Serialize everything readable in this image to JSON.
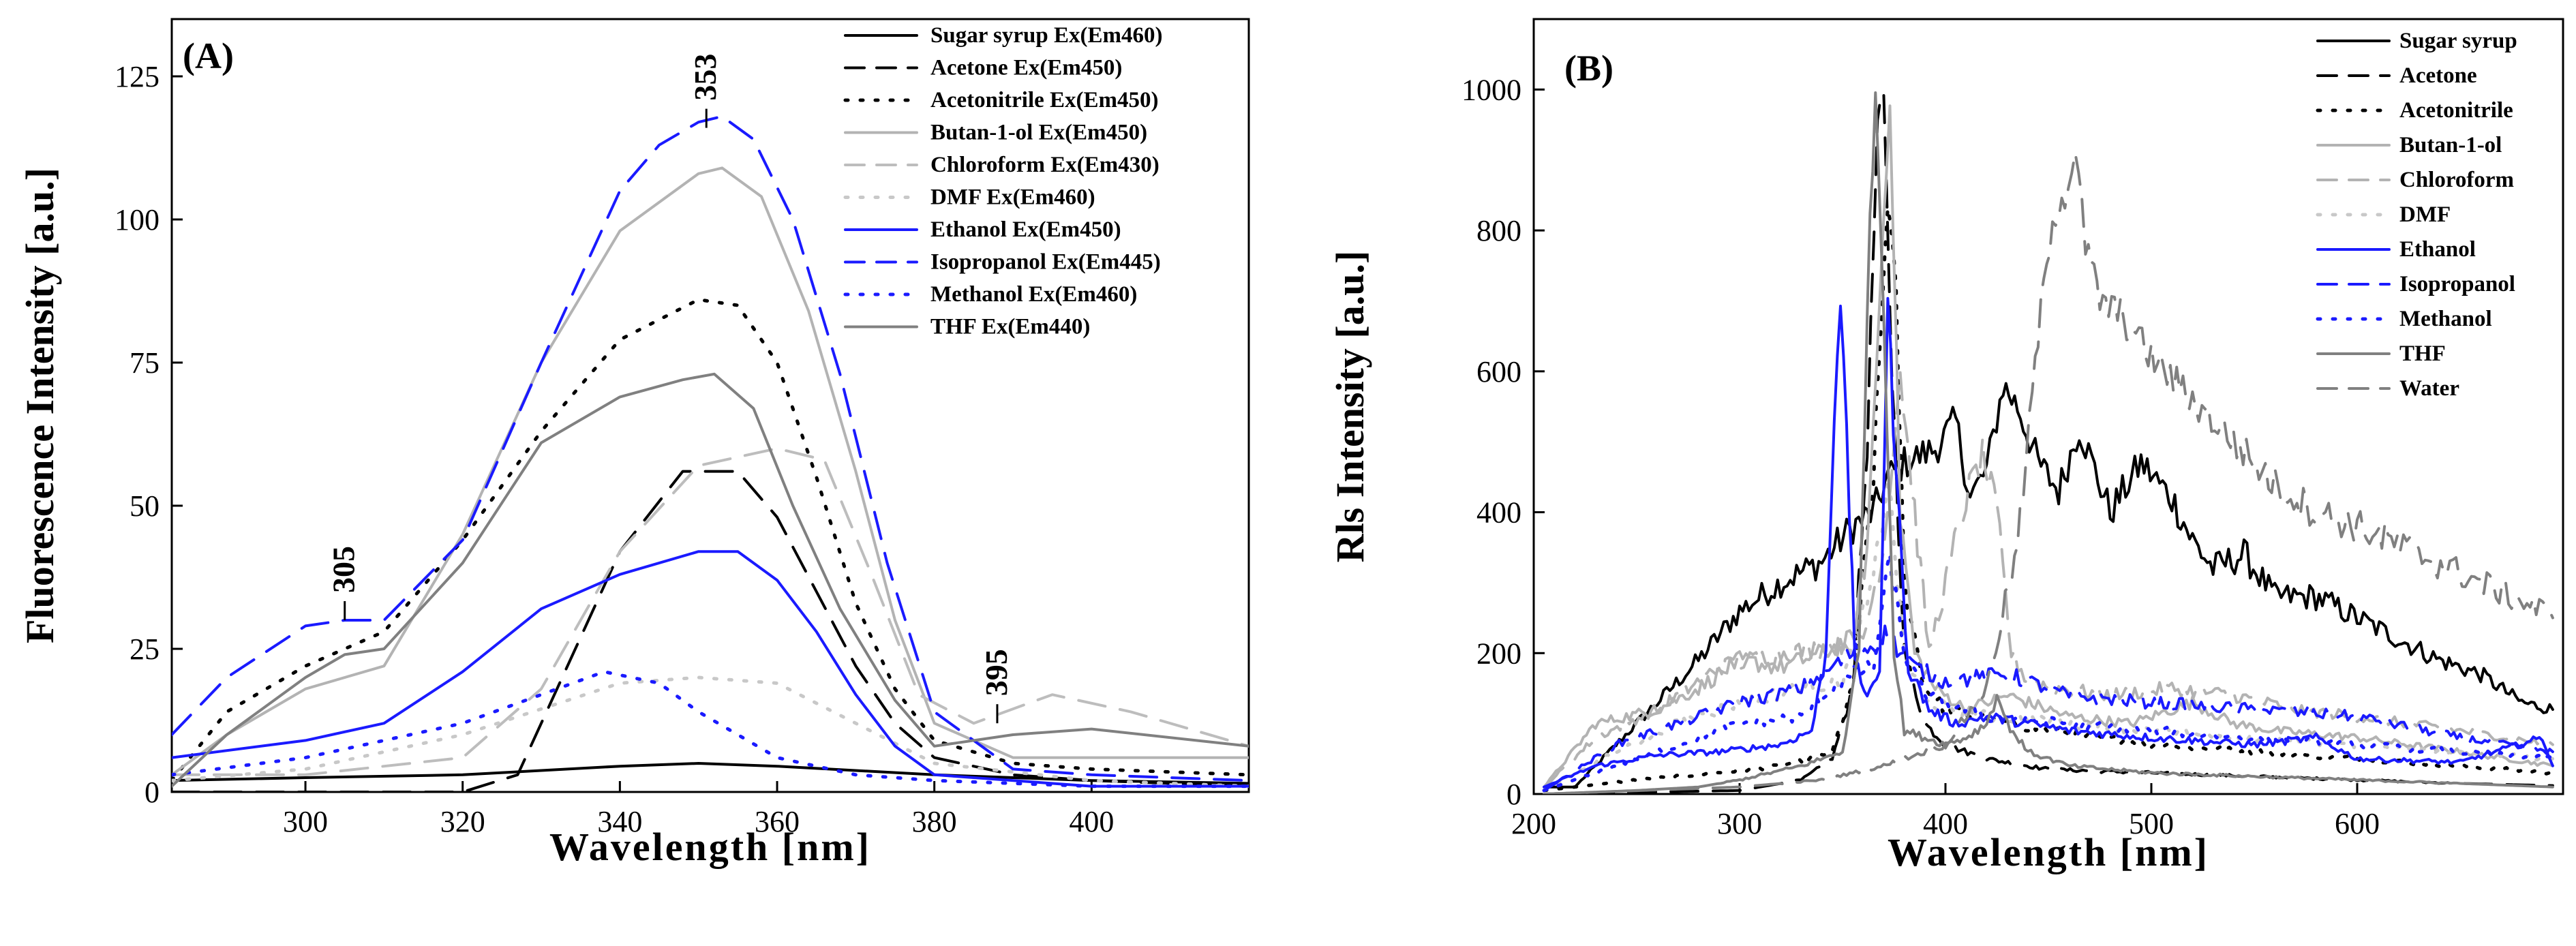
{
  "chart_data": [
    {
      "panel": "(A)",
      "type": "line",
      "xlabel": "Wavelength [nm]",
      "ylabel": "Fluorescence Intensity [a.u.]",
      "xlim": [
        283,
        420
      ],
      "ylim": [
        0,
        135
      ],
      "xticks": [
        300,
        320,
        340,
        360,
        380,
        400
      ],
      "yticks": [
        0,
        25,
        50,
        75,
        100,
        125
      ],
      "legend_position": "top-right",
      "annotations": [
        {
          "text": "305",
          "x": 305,
          "y": 30
        },
        {
          "text": "353",
          "x": 351,
          "y": 116
        },
        {
          "text": "395",
          "x": 388,
          "y": 12
        }
      ],
      "series": [
        {
          "name": "Sugar syrup Ex(Em460)",
          "color": "#000000",
          "dash": "solid",
          "x": [
            283,
            300,
            320,
            340,
            350,
            360,
            380,
            400,
            420
          ],
          "y": [
            2,
            2.5,
            3,
            4.5,
            5,
            4.5,
            3,
            2,
            1.5
          ]
        },
        {
          "name": "Acetone Ex(Em450)",
          "color": "#000000",
          "dash": "longdash",
          "x": [
            283,
            320,
            327,
            332,
            340,
            348,
            355,
            360,
            365,
            370,
            375,
            380,
            390,
            400,
            420
          ],
          "y": [
            0,
            0,
            3,
            18,
            42,
            56,
            56,
            48,
            35,
            22,
            12,
            6,
            3,
            2,
            1
          ]
        },
        {
          "name": "Acetonitrile Ex(Em450)",
          "color": "#000000",
          "dash": "dot",
          "x": [
            283,
            290,
            300,
            310,
            320,
            330,
            340,
            350,
            355,
            360,
            365,
            370,
            375,
            380,
            390,
            400,
            420
          ],
          "y": [
            2,
            14,
            22,
            28,
            44,
            63,
            79,
            86,
            85,
            75,
            55,
            33,
            18,
            9,
            5,
            4,
            3
          ]
        },
        {
          "name": "Butan-1-ol Ex(Em450)",
          "color": "#b3b3b3",
          "dash": "solid",
          "x": [
            283,
            290,
            300,
            310,
            320,
            330,
            340,
            350,
            353,
            358,
            364,
            370,
            375,
            380,
            390,
            400,
            420
          ],
          "y": [
            3,
            10,
            18,
            22,
            45,
            75,
            98,
            108,
            109,
            104,
            84,
            56,
            30,
            12,
            6,
            6,
            6
          ]
        },
        {
          "name": "Chloroform Ex(Em430)",
          "color": "#bdbdbd",
          "dash": "longdash",
          "x": [
            283,
            300,
            320,
            330,
            340,
            350,
            360,
            366,
            372,
            378,
            385,
            395,
            405,
            420
          ],
          "y": [
            3,
            3,
            6,
            18,
            42,
            57,
            60,
            58,
            38,
            17,
            12,
            17,
            14,
            8
          ]
        },
        {
          "name": "DMF Ex(Em460)",
          "color": "#c8c8c8",
          "dash": "dot",
          "x": [
            283,
            300,
            320,
            340,
            350,
            360,
            370,
            380,
            400,
            420
          ],
          "y": [
            2,
            4,
            10,
            19,
            20,
            19,
            12,
            5,
            2,
            1
          ]
        },
        {
          "name": "Ethanol Ex(Em450)",
          "color": "#1a1aff",
          "dash": "solid",
          "x": [
            283,
            300,
            310,
            320,
            330,
            340,
            350,
            355,
            360,
            365,
            370,
            375,
            380,
            400,
            420
          ],
          "y": [
            6,
            9,
            12,
            21,
            32,
            38,
            42,
            42,
            37,
            28,
            17,
            8,
            3,
            1,
            1
          ]
        },
        {
          "name": "Isopropanol Ex(Em445)",
          "color": "#1a1aff",
          "dash": "longdash",
          "x": [
            283,
            290,
            300,
            305,
            310,
            320,
            330,
            340,
            345,
            350,
            353,
            357,
            362,
            368,
            374,
            380,
            390,
            400,
            420
          ],
          "y": [
            10,
            20,
            29,
            30,
            30,
            44,
            75,
            105,
            113,
            117,
            118,
            114,
            100,
            73,
            40,
            14,
            4,
            3,
            2
          ]
        },
        {
          "name": "Methanol Ex(Em460)",
          "color": "#1a1aff",
          "dash": "dot",
          "x": [
            283,
            300,
            320,
            330,
            338,
            345,
            350,
            360,
            370,
            380,
            400,
            420
          ],
          "y": [
            3,
            6,
            12,
            17,
            21,
            19,
            14,
            6,
            3,
            2,
            1,
            1
          ]
        },
        {
          "name": "THF Ex(Em440)",
          "color": "#808080",
          "dash": "solid",
          "x": [
            283,
            290,
            300,
            305,
            310,
            320,
            330,
            340,
            348,
            352,
            357,
            362,
            368,
            375,
            380,
            390,
            400,
            420
          ],
          "y": [
            1,
            10,
            20,
            24,
            25,
            40,
            61,
            69,
            72,
            73,
            67,
            50,
            32,
            16,
            8,
            10,
            11,
            8
          ]
        }
      ]
    },
    {
      "panel": "(B)",
      "type": "line",
      "xlabel": "Wavelength [nm]",
      "ylabel": "Rls Intensity [a.u.]",
      "xlim": [
        200,
        700
      ],
      "ylim": [
        0,
        1100
      ],
      "xticks": [
        200,
        300,
        400,
        500,
        600
      ],
      "yticks": [
        0,
        200,
        400,
        600,
        800,
        1000
      ],
      "legend_position": "top-right",
      "series": [
        {
          "name": "Sugar syrup",
          "color": "#000000",
          "dash": "solid",
          "x": [
            205,
            220,
            240,
            260,
            280,
            300,
            320,
            340,
            355,
            365,
            372,
            380,
            395,
            405,
            412,
            420,
            428,
            435,
            445,
            455,
            465,
            480,
            495,
            510,
            520,
            530,
            545,
            560,
            580,
            600,
            620,
            640,
            660,
            680,
            695
          ],
          "y": [
            10,
            10,
            70,
            130,
            190,
            260,
            300,
            330,
            380,
            400,
            450,
            470,
            490,
            530,
            420,
            460,
            580,
            550,
            470,
            430,
            520,
            400,
            470,
            420,
            360,
            320,
            340,
            280,
            280,
            250,
            220,
            190,
            170,
            130,
            120
          ]
        },
        {
          "name": "Acetone",
          "color": "#000000",
          "dash": "longdash",
          "x": [
            205,
            300,
            330,
            345,
            355,
            362,
            367,
            370,
            374,
            380,
            390,
            400,
            420,
            450,
            500,
            550,
            600,
            650,
            695
          ],
          "y": [
            0,
            5,
            20,
            50,
            150,
            500,
            950,
            980,
            600,
            200,
            100,
            70,
            50,
            35,
            30,
            25,
            20,
            15,
            12
          ]
        },
        {
          "name": "Acetonitrile",
          "color": "#000000",
          "dash": "dot",
          "x": [
            205,
            250,
            290,
            320,
            345,
            355,
            365,
            372,
            376,
            380,
            390,
            400,
            430,
            450,
            500,
            550,
            600,
            650,
            695
          ],
          "y": [
            5,
            20,
            30,
            40,
            60,
            150,
            450,
            850,
            700,
            300,
            150,
            120,
            100,
            90,
            70,
            60,
            50,
            40,
            30
          ]
        },
        {
          "name": "Butan-1-ol",
          "color": "#b3b3b3",
          "dash": "solid",
          "x": [
            205,
            230,
            260,
            280,
            300,
            320,
            340,
            355,
            362,
            368,
            373,
            378,
            385,
            395,
            410,
            430,
            460,
            490,
            520,
            540,
            560,
            600,
            650,
            695
          ],
          "y": [
            10,
            100,
            120,
            150,
            190,
            180,
            200,
            220,
            350,
            700,
            1000,
            400,
            200,
            150,
            120,
            140,
            110,
            100,
            130,
            100,
            90,
            80,
            60,
            40
          ]
        },
        {
          "name": "Chloroform",
          "color": "#b3b3b3",
          "dash": "longdash",
          "x": [
            205,
            230,
            260,
            290,
            320,
            345,
            360,
            370,
            378,
            385,
            392,
            400,
            410,
            418,
            425,
            432,
            440,
            455,
            480,
            510,
            540,
            570,
            600,
            650,
            695
          ],
          "y": [
            10,
            80,
            120,
            180,
            200,
            210,
            220,
            350,
            600,
            400,
            200,
            300,
            420,
            480,
            400,
            200,
            160,
            150,
            140,
            150,
            140,
            120,
            110,
            90,
            70
          ]
        },
        {
          "name": "DMF",
          "color": "#c8c8c8",
          "dash": "dot",
          "x": [
            205,
            240,
            270,
            300,
            330,
            350,
            365,
            372,
            380,
            390,
            420,
            460,
            500,
            550,
            600,
            650,
            695
          ],
          "y": [
            5,
            60,
            100,
            130,
            150,
            160,
            300,
            450,
            200,
            130,
            110,
            100,
            90,
            80,
            70,
            60,
            50
          ]
        },
        {
          "name": "Ethanol",
          "color": "#1a1aff",
          "dash": "solid",
          "x": [
            205,
            230,
            260,
            290,
            320,
            335,
            342,
            346,
            349,
            352,
            356,
            362,
            368,
            372,
            376,
            382,
            392,
            405,
            420,
            440,
            460,
            500,
            550,
            580,
            600,
            650,
            690,
            695
          ],
          "y": [
            10,
            40,
            55,
            60,
            70,
            90,
            200,
            550,
            710,
            500,
            200,
            130,
            180,
            700,
            450,
            180,
            120,
            100,
            110,
            100,
            90,
            80,
            70,
            80,
            50,
            45,
            80,
            40
          ]
        },
        {
          "name": "Isopropanol",
          "color": "#1a1aff",
          "dash": "longdash",
          "x": [
            205,
            240,
            270,
            300,
            330,
            345,
            355,
            365,
            372,
            378,
            385,
            400,
            430,
            460,
            500,
            550,
            600,
            650,
            695
          ],
          "y": [
            5,
            70,
            100,
            130,
            150,
            180,
            200,
            210,
            230,
            200,
            180,
            160,
            170,
            140,
            130,
            120,
            110,
            80,
            60
          ]
        },
        {
          "name": "Methanol",
          "color": "#1a1aff",
          "dash": "dot",
          "x": [
            205,
            240,
            270,
            300,
            330,
            345,
            355,
            365,
            373,
            380,
            390,
            420,
            460,
            500,
            550,
            600,
            650,
            695
          ],
          "y": [
            5,
            40,
            70,
            100,
            110,
            150,
            170,
            180,
            330,
            200,
            140,
            110,
            100,
            90,
            80,
            70,
            60,
            50
          ]
        },
        {
          "name": "THF",
          "color": "#808080",
          "dash": "solid",
          "x": [
            205,
            250,
            280,
            300,
            330,
            350,
            358,
            362,
            366,
            370,
            375,
            380,
            390,
            400,
            410,
            420,
            425,
            430,
            440,
            460,
            500,
            550,
            600,
            650,
            695
          ],
          "y": [
            0,
            5,
            10,
            20,
            40,
            60,
            200,
            700,
            1000,
            700,
            200,
            90,
            80,
            70,
            80,
            100,
            140,
            100,
            60,
            40,
            30,
            25,
            20,
            15,
            10
          ]
        },
        {
          "name": "Water",
          "color": "#808080",
          "dash": "longdash",
          "x": [
            205,
            300,
            340,
            370,
            400,
            420,
            435,
            445,
            452,
            458,
            463,
            468,
            475,
            485,
            500,
            520,
            540,
            560,
            580,
            600,
            630,
            660,
            690,
            695
          ],
          "y": [
            0,
            10,
            20,
            40,
            70,
            150,
            350,
            650,
            820,
            850,
            910,
            780,
            700,
            680,
            620,
            560,
            500,
            440,
            400,
            380,
            340,
            300,
            260,
            250
          ]
        }
      ]
    }
  ]
}
